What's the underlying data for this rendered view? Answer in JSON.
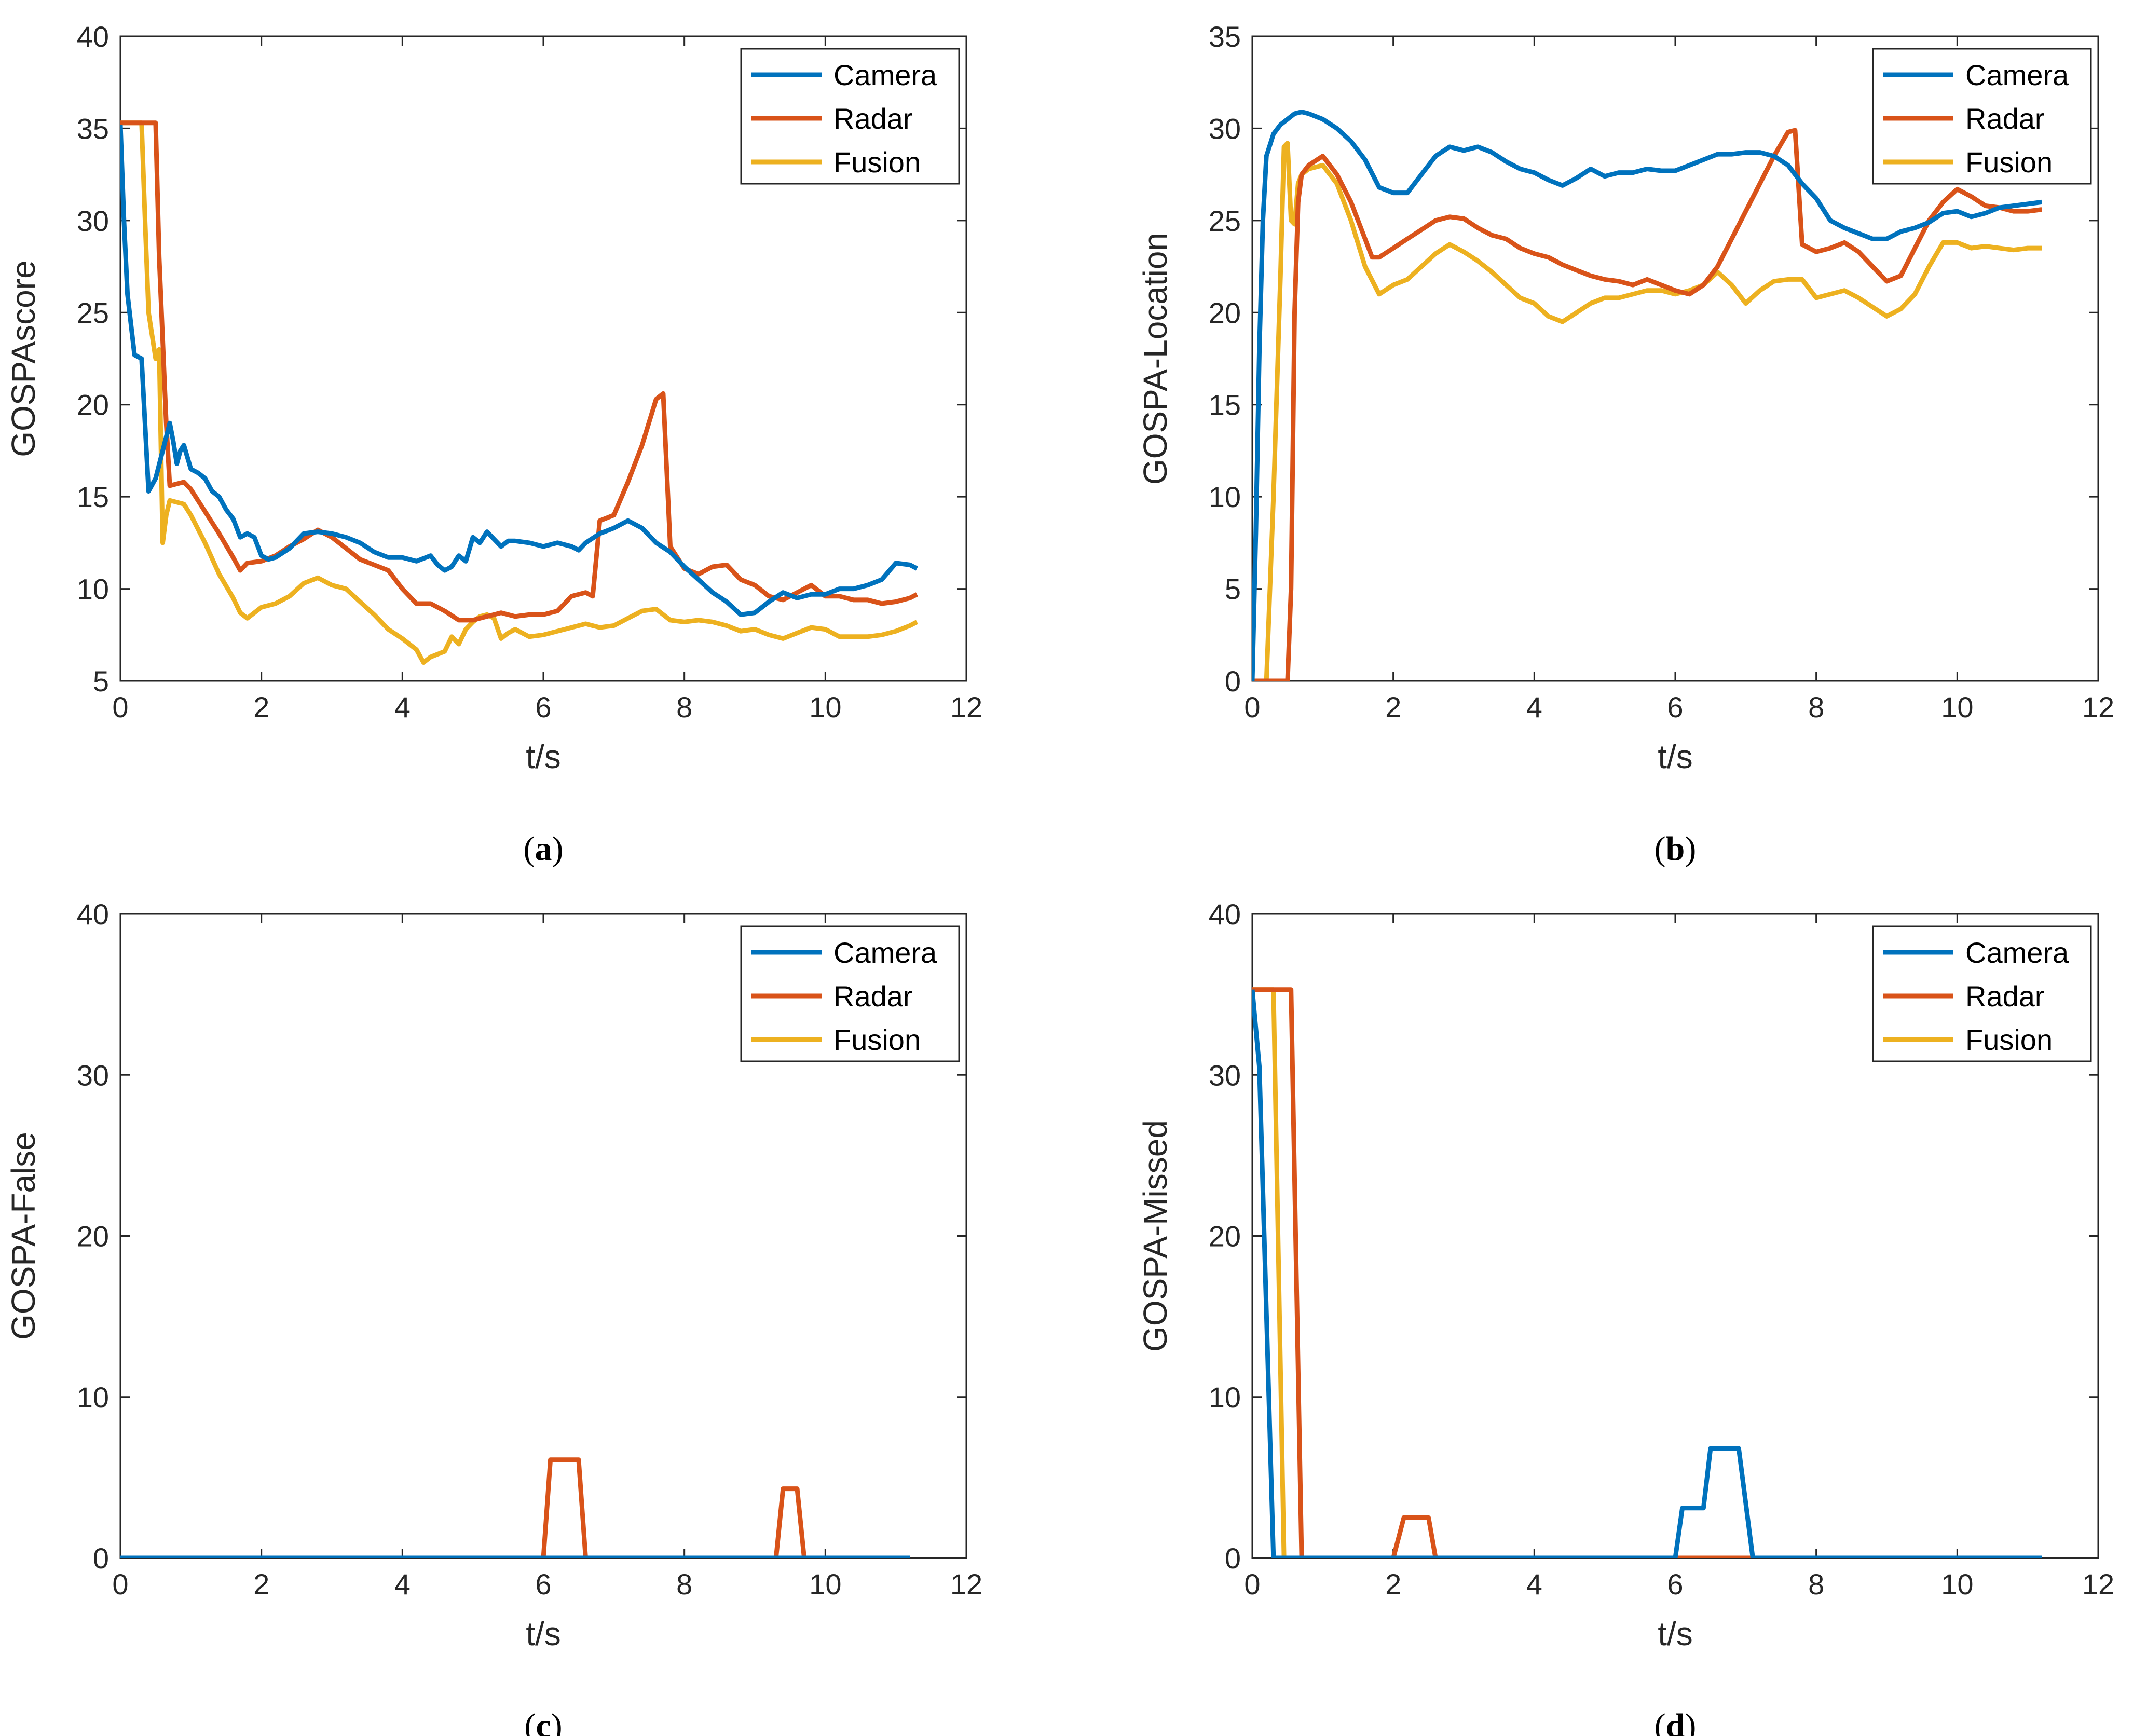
{
  "colors": {
    "camera": "#0072BD",
    "radar": "#D95319",
    "fusion": "#EDB120"
  },
  "chart_data": [
    {
      "type": "line",
      "panel_label": "a",
      "xlabel": "t/s",
      "ylabel": "GOSPAscore",
      "xlim": [
        0,
        12
      ],
      "ylim": [
        5,
        40
      ],
      "xticks": [
        0,
        2,
        4,
        6,
        8,
        10,
        12
      ],
      "yticks": [
        5,
        10,
        15,
        20,
        25,
        30,
        35,
        40
      ],
      "legend": {
        "position": "top-right",
        "entries": [
          "Camera",
          "Radar",
          "Fusion"
        ]
      },
      "series": [
        {
          "name": "Camera",
          "x": [
            0,
            0.05,
            0.1,
            0.2,
            0.3,
            0.4,
            0.5,
            0.6,
            0.7,
            0.75,
            0.8,
            0.85,
            0.9,
            1.0,
            1.1,
            1.2,
            1.3,
            1.4,
            1.5,
            1.6,
            1.7,
            1.8,
            1.9,
            2.0,
            2.1,
            2.2,
            2.4,
            2.6,
            2.8,
            3.0,
            3.2,
            3.4,
            3.6,
            3.8,
            4.0,
            4.2,
            4.4,
            4.5,
            4.6,
            4.7,
            4.8,
            4.9,
            5.0,
            5.1,
            5.2,
            5.4,
            5.5,
            5.6,
            5.8,
            6.0,
            6.2,
            6.4,
            6.5,
            6.6,
            6.8,
            7.0,
            7.2,
            7.4,
            7.6,
            7.8,
            8.0,
            8.2,
            8.4,
            8.6,
            8.8,
            9.0,
            9.2,
            9.4,
            9.6,
            9.8,
            10.0,
            10.2,
            10.4,
            10.6,
            10.8,
            11.0,
            11.2,
            11.3
          ],
          "values": [
            35.2,
            30,
            26,
            22.7,
            22.5,
            15.3,
            16,
            17.5,
            19,
            18,
            16.8,
            17.5,
            17.8,
            16.5,
            16.3,
            16,
            15.3,
            15,
            14.3,
            13.8,
            12.8,
            13,
            12.8,
            11.8,
            11.6,
            11.7,
            12.2,
            13,
            13.1,
            13,
            12.8,
            12.5,
            12,
            11.7,
            11.7,
            11.5,
            11.8,
            11.3,
            11,
            11.2,
            11.8,
            11.5,
            12.8,
            12.5,
            13.1,
            12.3,
            12.6,
            12.6,
            12.5,
            12.3,
            12.5,
            12.3,
            12.1,
            12.5,
            13,
            13.3,
            13.7,
            13.3,
            12.5,
            12,
            11.2,
            10.5,
            9.8,
            9.3,
            8.6,
            8.7,
            9.3,
            9.8,
            9.5,
            9.7,
            9.7,
            10,
            10,
            10.2,
            10.5,
            11.4,
            11.3,
            11.1
          ]
        },
        {
          "name": "Radar",
          "x": [
            0,
            0.1,
            0.4,
            0.5,
            0.55,
            0.65,
            0.7,
            0.9,
            1.0,
            1.2,
            1.4,
            1.6,
            1.7,
            1.8,
            2.0,
            2.2,
            2.4,
            2.6,
            2.8,
            3.0,
            3.2,
            3.4,
            3.6,
            3.8,
            4.0,
            4.2,
            4.4,
            4.6,
            4.8,
            5.0,
            5.2,
            5.4,
            5.6,
            5.8,
            6.0,
            6.2,
            6.4,
            6.6,
            6.7,
            6.8,
            7.0,
            7.2,
            7.4,
            7.6,
            7.7,
            7.8,
            8.0,
            8.2,
            8.4,
            8.6,
            8.8,
            9.0,
            9.2,
            9.4,
            9.6,
            9.8,
            10.0,
            10.2,
            10.4,
            10.6,
            10.8,
            11.0,
            11.2,
            11.3
          ],
          "values": [
            35.3,
            35.3,
            35.3,
            35.3,
            28,
            19,
            15.6,
            15.8,
            15.4,
            14.2,
            13,
            11.7,
            11.0,
            11.4,
            11.5,
            11.8,
            12.3,
            12.7,
            13.2,
            12.8,
            12.2,
            11.6,
            11.3,
            11.0,
            10,
            9.2,
            9.2,
            8.8,
            8.3,
            8.3,
            8.5,
            8.7,
            8.5,
            8.6,
            8.6,
            8.8,
            9.6,
            9.8,
            9.6,
            13.7,
            14,
            15.8,
            17.8,
            20.3,
            20.6,
            12.3,
            11.1,
            10.8,
            11.2,
            11.3,
            10.5,
            10.2,
            9.6,
            9.4,
            9.8,
            10.2,
            9.6,
            9.6,
            9.4,
            9.4,
            9.2,
            9.3,
            9.5,
            9.7
          ]
        },
        {
          "name": "Fusion",
          "x": [
            0,
            0.1,
            0.2,
            0.3,
            0.35,
            0.4,
            0.5,
            0.55,
            0.6,
            0.65,
            0.7,
            0.9,
            1.0,
            1.2,
            1.4,
            1.6,
            1.7,
            1.8,
            2.0,
            2.2,
            2.4,
            2.6,
            2.8,
            3.0,
            3.2,
            3.4,
            3.6,
            3.8,
            4.0,
            4.2,
            4.3,
            4.4,
            4.6,
            4.7,
            4.8,
            4.9,
            5.0,
            5.1,
            5.2,
            5.3,
            5.4,
            5.5,
            5.6,
            5.8,
            6.0,
            6.2,
            6.4,
            6.6,
            6.8,
            7.0,
            7.2,
            7.4,
            7.6,
            7.8,
            8.0,
            8.2,
            8.4,
            8.6,
            8.8,
            9.0,
            9.2,
            9.4,
            9.6,
            9.8,
            10.0,
            10.2,
            10.4,
            10.6,
            10.8,
            11.0,
            11.2,
            11.3
          ],
          "values": [
            35.3,
            35.3,
            35.3,
            35.3,
            30,
            25,
            22.5,
            23,
            12.5,
            14,
            14.8,
            14.6,
            14,
            12.5,
            10.8,
            9.5,
            8.7,
            8.4,
            9.0,
            9.2,
            9.6,
            10.3,
            10.6,
            10.2,
            10,
            9.3,
            8.6,
            7.8,
            7.3,
            6.7,
            6.0,
            6.3,
            6.6,
            7.4,
            7,
            7.8,
            8.2,
            8.5,
            8.6,
            8.4,
            7.3,
            7.6,
            7.8,
            7.4,
            7.5,
            7.7,
            7.9,
            8.1,
            7.9,
            8.0,
            8.4,
            8.8,
            8.9,
            8.3,
            8.2,
            8.3,
            8.2,
            8.0,
            7.7,
            7.8,
            7.5,
            7.3,
            7.6,
            7.9,
            7.8,
            7.4,
            7.4,
            7.4,
            7.5,
            7.7,
            8.0,
            8.2
          ]
        }
      ]
    },
    {
      "type": "line",
      "panel_label": "b",
      "xlabel": "t/s",
      "ylabel": "GOSPA-Location",
      "xlim": [
        0,
        12
      ],
      "ylim": [
        0,
        35
      ],
      "xticks": [
        0,
        2,
        4,
        6,
        8,
        10,
        12
      ],
      "yticks": [
        0,
        5,
        10,
        15,
        20,
        25,
        30,
        35
      ],
      "legend": {
        "position": "top-right",
        "entries": [
          "Camera",
          "Radar",
          "Fusion"
        ]
      },
      "series": [
        {
          "name": "Camera",
          "x": [
            0,
            0.05,
            0.1,
            0.15,
            0.2,
            0.3,
            0.4,
            0.5,
            0.6,
            0.7,
            0.8,
            1.0,
            1.2,
            1.4,
            1.6,
            1.8,
            2.0,
            2.2,
            2.4,
            2.6,
            2.8,
            3.0,
            3.2,
            3.4,
            3.6,
            3.8,
            4.0,
            4.2,
            4.4,
            4.6,
            4.8,
            5.0,
            5.2,
            5.4,
            5.6,
            5.8,
            6.0,
            6.2,
            6.4,
            6.6,
            6.8,
            7.0,
            7.2,
            7.4,
            7.6,
            7.8,
            8.0,
            8.2,
            8.4,
            8.6,
            8.8,
            9.0,
            9.2,
            9.4,
            9.6,
            9.8,
            10.0,
            10.2,
            10.4,
            10.6,
            10.8,
            11.0,
            11.2
          ],
          "values": [
            0,
            8,
            18,
            25,
            28.5,
            29.7,
            30.2,
            30.5,
            30.8,
            30.9,
            30.8,
            30.5,
            30,
            29.3,
            28.3,
            26.8,
            26.5,
            26.5,
            27.5,
            28.5,
            29,
            28.8,
            29,
            28.7,
            28.2,
            27.8,
            27.6,
            27.2,
            26.9,
            27.3,
            27.8,
            27.4,
            27.6,
            27.6,
            27.8,
            27.7,
            27.7,
            28,
            28.3,
            28.6,
            28.6,
            28.7,
            28.7,
            28.5,
            28,
            27,
            26.2,
            25,
            24.6,
            24.3,
            24,
            24,
            24.4,
            24.6,
            24.9,
            25.4,
            25.5,
            25.2,
            25.4,
            25.7,
            25.8,
            25.9,
            26
          ]
        },
        {
          "name": "Radar",
          "x": [
            0,
            0.1,
            0.2,
            0.3,
            0.4,
            0.5,
            0.55,
            0.6,
            0.65,
            0.7,
            0.8,
            1.0,
            1.2,
            1.4,
            1.6,
            1.7,
            1.8,
            2.0,
            2.2,
            2.4,
            2.6,
            2.8,
            3.0,
            3.2,
            3.4,
            3.6,
            3.8,
            4.0,
            4.2,
            4.4,
            4.6,
            4.8,
            5.0,
            5.2,
            5.4,
            5.6,
            5.8,
            6.0,
            6.2,
            6.4,
            6.6,
            6.8,
            7.0,
            7.2,
            7.4,
            7.6,
            7.7,
            7.8,
            8.0,
            8.2,
            8.4,
            8.6,
            8.8,
            9.0,
            9.2,
            9.4,
            9.6,
            9.8,
            10.0,
            10.2,
            10.4,
            10.6,
            10.8,
            11.0,
            11.2
          ],
          "values": [
            0,
            0,
            0,
            0,
            0,
            0,
            5,
            20,
            26,
            27.5,
            28,
            28.5,
            27.5,
            26,
            24,
            23,
            23,
            23.5,
            24,
            24.5,
            25,
            25.2,
            25.1,
            24.6,
            24.2,
            24,
            23.5,
            23.2,
            23,
            22.6,
            22.3,
            22,
            21.8,
            21.7,
            21.5,
            21.8,
            21.5,
            21.2,
            21,
            21.5,
            22.5,
            24,
            25.5,
            27,
            28.5,
            29.8,
            29.9,
            23.7,
            23.3,
            23.5,
            23.8,
            23.3,
            22.5,
            21.7,
            22,
            23.5,
            25,
            26,
            26.7,
            26.3,
            25.8,
            25.7,
            25.5,
            25.5,
            25.6
          ]
        },
        {
          "name": "Fusion",
          "x": [
            0,
            0.1,
            0.2,
            0.3,
            0.4,
            0.45,
            0.5,
            0.55,
            0.6,
            0.65,
            0.7,
            0.8,
            1.0,
            1.2,
            1.4,
            1.6,
            1.8,
            2.0,
            2.2,
            2.4,
            2.6,
            2.8,
            3.0,
            3.2,
            3.4,
            3.6,
            3.8,
            4.0,
            4.2,
            4.4,
            4.6,
            4.8,
            5.0,
            5.2,
            5.4,
            5.6,
            5.8,
            6.0,
            6.2,
            6.4,
            6.6,
            6.8,
            7.0,
            7.2,
            7.4,
            7.6,
            7.8,
            8.0,
            8.2,
            8.4,
            8.6,
            8.8,
            9.0,
            9.2,
            9.4,
            9.6,
            9.8,
            10.0,
            10.2,
            10.4,
            10.6,
            10.8,
            11.0,
            11.2
          ],
          "values": [
            0,
            0,
            0,
            10,
            22,
            29,
            29.2,
            25,
            24.8,
            27,
            27.5,
            27.8,
            28,
            27,
            25,
            22.5,
            21,
            21.5,
            21.8,
            22.5,
            23.2,
            23.7,
            23.3,
            22.8,
            22.2,
            21.5,
            20.8,
            20.5,
            19.8,
            19.5,
            20,
            20.5,
            20.8,
            20.8,
            21,
            21.2,
            21.2,
            21,
            21.2,
            21.5,
            22.2,
            21.5,
            20.5,
            21.2,
            21.7,
            21.8,
            21.8,
            20.8,
            21,
            21.2,
            20.8,
            20.3,
            19.8,
            20.2,
            21,
            22.5,
            23.8,
            23.8,
            23.5,
            23.6,
            23.5,
            23.4,
            23.5,
            23.5
          ]
        }
      ]
    },
    {
      "type": "line",
      "panel_label": "c",
      "xlabel": "t/s",
      "ylabel": "GOSPA-False",
      "xlim": [
        0,
        12
      ],
      "ylim": [
        0,
        40
      ],
      "xticks": [
        0,
        2,
        4,
        6,
        8,
        10,
        12
      ],
      "yticks": [
        0,
        10,
        20,
        30,
        40
      ],
      "legend": {
        "position": "top-right",
        "entries": [
          "Camera",
          "Radar",
          "Fusion"
        ]
      },
      "series": [
        {
          "name": "Camera",
          "x": [
            0,
            11.2
          ],
          "values": [
            0,
            0
          ]
        },
        {
          "name": "Radar",
          "x": [
            0,
            6.0,
            6.1,
            6.5,
            6.6,
            9.3,
            9.4,
            9.6,
            9.7,
            11.2
          ],
          "values": [
            0,
            0,
            6.1,
            6.1,
            0,
            0,
            4.3,
            4.3,
            0,
            0
          ]
        },
        {
          "name": "Fusion",
          "x": [
            0,
            11.2
          ],
          "values": [
            0,
            0
          ]
        }
      ]
    },
    {
      "type": "line",
      "panel_label": "d",
      "xlabel": "t/s",
      "ylabel": "GOSPA-Missed",
      "xlim": [
        0,
        12
      ],
      "ylim": [
        0,
        40
      ],
      "xticks": [
        0,
        2,
        4,
        6,
        8,
        10,
        12
      ],
      "yticks": [
        0,
        10,
        20,
        30,
        40
      ],
      "legend": {
        "position": "top-right",
        "entries": [
          "Camera",
          "Radar",
          "Fusion"
        ]
      },
      "series": [
        {
          "name": "Camera",
          "x": [
            0,
            0.1,
            0.3,
            0.4,
            6.0,
            6.1,
            6.4,
            6.5,
            6.9,
            7.1,
            11.2
          ],
          "values": [
            35.3,
            30.5,
            0,
            0,
            0,
            3.1,
            3.1,
            6.8,
            6.8,
            0,
            0
          ]
        },
        {
          "name": "Radar",
          "x": [
            0,
            0.55,
            0.7,
            2.0,
            2.15,
            2.5,
            2.6,
            11.2
          ],
          "values": [
            35.3,
            35.3,
            0,
            0,
            2.5,
            2.5,
            0,
            0
          ]
        },
        {
          "name": "Fusion",
          "x": [
            0,
            0.3,
            0.45,
            11.2
          ],
          "values": [
            35.3,
            35.3,
            0,
            0
          ]
        }
      ]
    }
  ]
}
